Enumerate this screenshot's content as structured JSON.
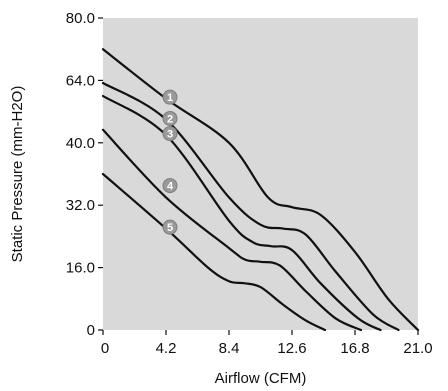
{
  "chart_data": {
    "type": "line",
    "title": "",
    "xlabel": "Airflow (CFM)",
    "ylabel": "Static Pressure (mm-H2O)",
    "xlim": [
      0,
      21.0
    ],
    "ylim": [
      0,
      80.0
    ],
    "x_ticks": [
      "0",
      "4.2",
      "8.4",
      "12.6",
      "16.8",
      "21.0"
    ],
    "y_ticks": [
      "0",
      "16.0",
      "32.0",
      "40.0",
      "64.0",
      "80.0"
    ],
    "grid": false,
    "colors": {
      "plot_background": "#d9d9d9",
      "curve": "#111111",
      "badge": "#9a9a9a"
    },
    "series": [
      {
        "label": "1",
        "x": [
          0,
          4.2,
          8.4,
          11.0,
          12.6,
          14.5,
          16.8,
          19.0,
          21.0
        ],
        "y": [
          72.0,
          57.0,
          40.0,
          33.0,
          31.5,
          29.5,
          20.0,
          8.0,
          0
        ]
      },
      {
        "label": "2",
        "x": [
          0,
          4.2,
          8.4,
          10.5,
          12.0,
          13.5,
          15.5,
          18.0,
          19.7
        ],
        "y": [
          63.0,
          49.0,
          33.0,
          27.0,
          26.0,
          24.5,
          15.0,
          4.0,
          0
        ]
      },
      {
        "label": "3",
        "x": [
          0,
          4.2,
          8.4,
          10.0,
          11.2,
          12.6,
          14.5,
          17.0,
          18.5
        ],
        "y": [
          58.0,
          43.0,
          28.0,
          22.5,
          21.5,
          20.5,
          12.0,
          3.0,
          0
        ]
      },
      {
        "label": "4",
        "x": [
          0,
          4.2,
          8.4,
          9.5,
          10.5,
          11.8,
          13.5,
          15.5,
          17.2
        ],
        "y": [
          45.0,
          33.0,
          21.0,
          18.0,
          17.5,
          16.5,
          10.0,
          3.0,
          0
        ]
      },
      {
        "label": "5",
        "x": [
          0,
          4.2,
          7.0,
          8.4,
          9.4,
          10.5,
          12.0,
          13.5,
          14.8
        ],
        "y": [
          36.0,
          26.0,
          16.0,
          12.5,
          12.0,
          11.0,
          6.5,
          2.5,
          0
        ]
      }
    ]
  }
}
